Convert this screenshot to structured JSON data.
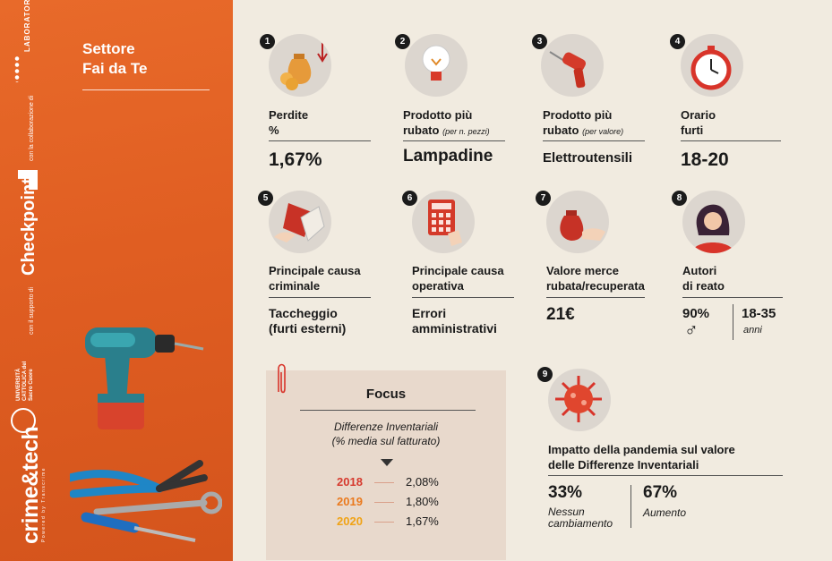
{
  "sidebar": {
    "title_line1": "Settore",
    "title_line2": "Fai da Te",
    "logo_crime_tech": "crime&tech",
    "logo_crime_tech_sub": "Powered by Transcrime",
    "logo_universita": "UNIVERSITÀ CATTOLICA del Sacro Cuore",
    "support_text": "con il supporto di",
    "checkpoint": "Checkpoint",
    "collab_text": "con la collaborazione di",
    "laboratorio": "LABORATORIO RETAIL"
  },
  "colors": {
    "accent": "#e0602a",
    "badge": "#1b1b1b",
    "focus_bg": "#e8d9cc",
    "y2018": "#d63a2e",
    "y2019": "#ea7a1e",
    "y2020": "#f0a316"
  },
  "items": [
    {
      "num": "1",
      "icon": "money-bag-down-icon",
      "label_line1": "Perdite",
      "label_line2": "%",
      "value": "1,67%"
    },
    {
      "num": "2",
      "icon": "lightbulb-icon",
      "label_line1": "Prodotto più",
      "label_line2": "rubato",
      "label_note": "(per n. pezzi)",
      "value": "Lampadine"
    },
    {
      "num": "3",
      "icon": "power-drill-icon",
      "label_line1": "Prodotto più",
      "label_line2": "rubato",
      "label_note": "(per valore)",
      "value": "Elettroutensili"
    },
    {
      "num": "4",
      "icon": "stopwatch-icon",
      "label_line1": "Orario",
      "label_line2": "furti",
      "value": "18-20"
    },
    {
      "num": "5",
      "icon": "shoplifting-hand-icon",
      "label_line1": "Principale causa",
      "label_line2": "criminale",
      "value_line1": "Taccheggio",
      "value_line2": "(furti esterni)"
    },
    {
      "num": "6",
      "icon": "calculator-icon",
      "label_line1": "Principale causa",
      "label_line2": "operativa",
      "value_line1": "Errori",
      "value_line2": "amministrativi"
    },
    {
      "num": "7",
      "icon": "money-bag-hand-icon",
      "label_line1": "Valore merce",
      "label_line2": "rubata/recuperata",
      "value": "21€"
    },
    {
      "num": "8",
      "icon": "woman-avatar-icon",
      "label_line1": "Autori",
      "label_line2": "di reato",
      "pct": "90%",
      "gender": "♂",
      "age": "18-35",
      "age_unit": "anni"
    }
  ],
  "focus": {
    "title": "Focus",
    "subtitle_line1": "Differenze Inventariali",
    "subtitle_line2": "(% media sul fatturato)",
    "rows": [
      {
        "year": "2018",
        "value": "2,08%"
      },
      {
        "year": "2019",
        "value": "1,80%"
      },
      {
        "year": "2020",
        "value": "1,67%"
      }
    ]
  },
  "pandemic": {
    "num": "9",
    "icon": "virus-icon",
    "label_line1": "Impatto della pandemia sul valore",
    "label_line2": "delle Differenze Inventariali",
    "a_value": "33%",
    "a_label_line1": "Nessun",
    "a_label_line2": "cambiamento",
    "b_value": "67%",
    "b_label": "Aumento"
  }
}
